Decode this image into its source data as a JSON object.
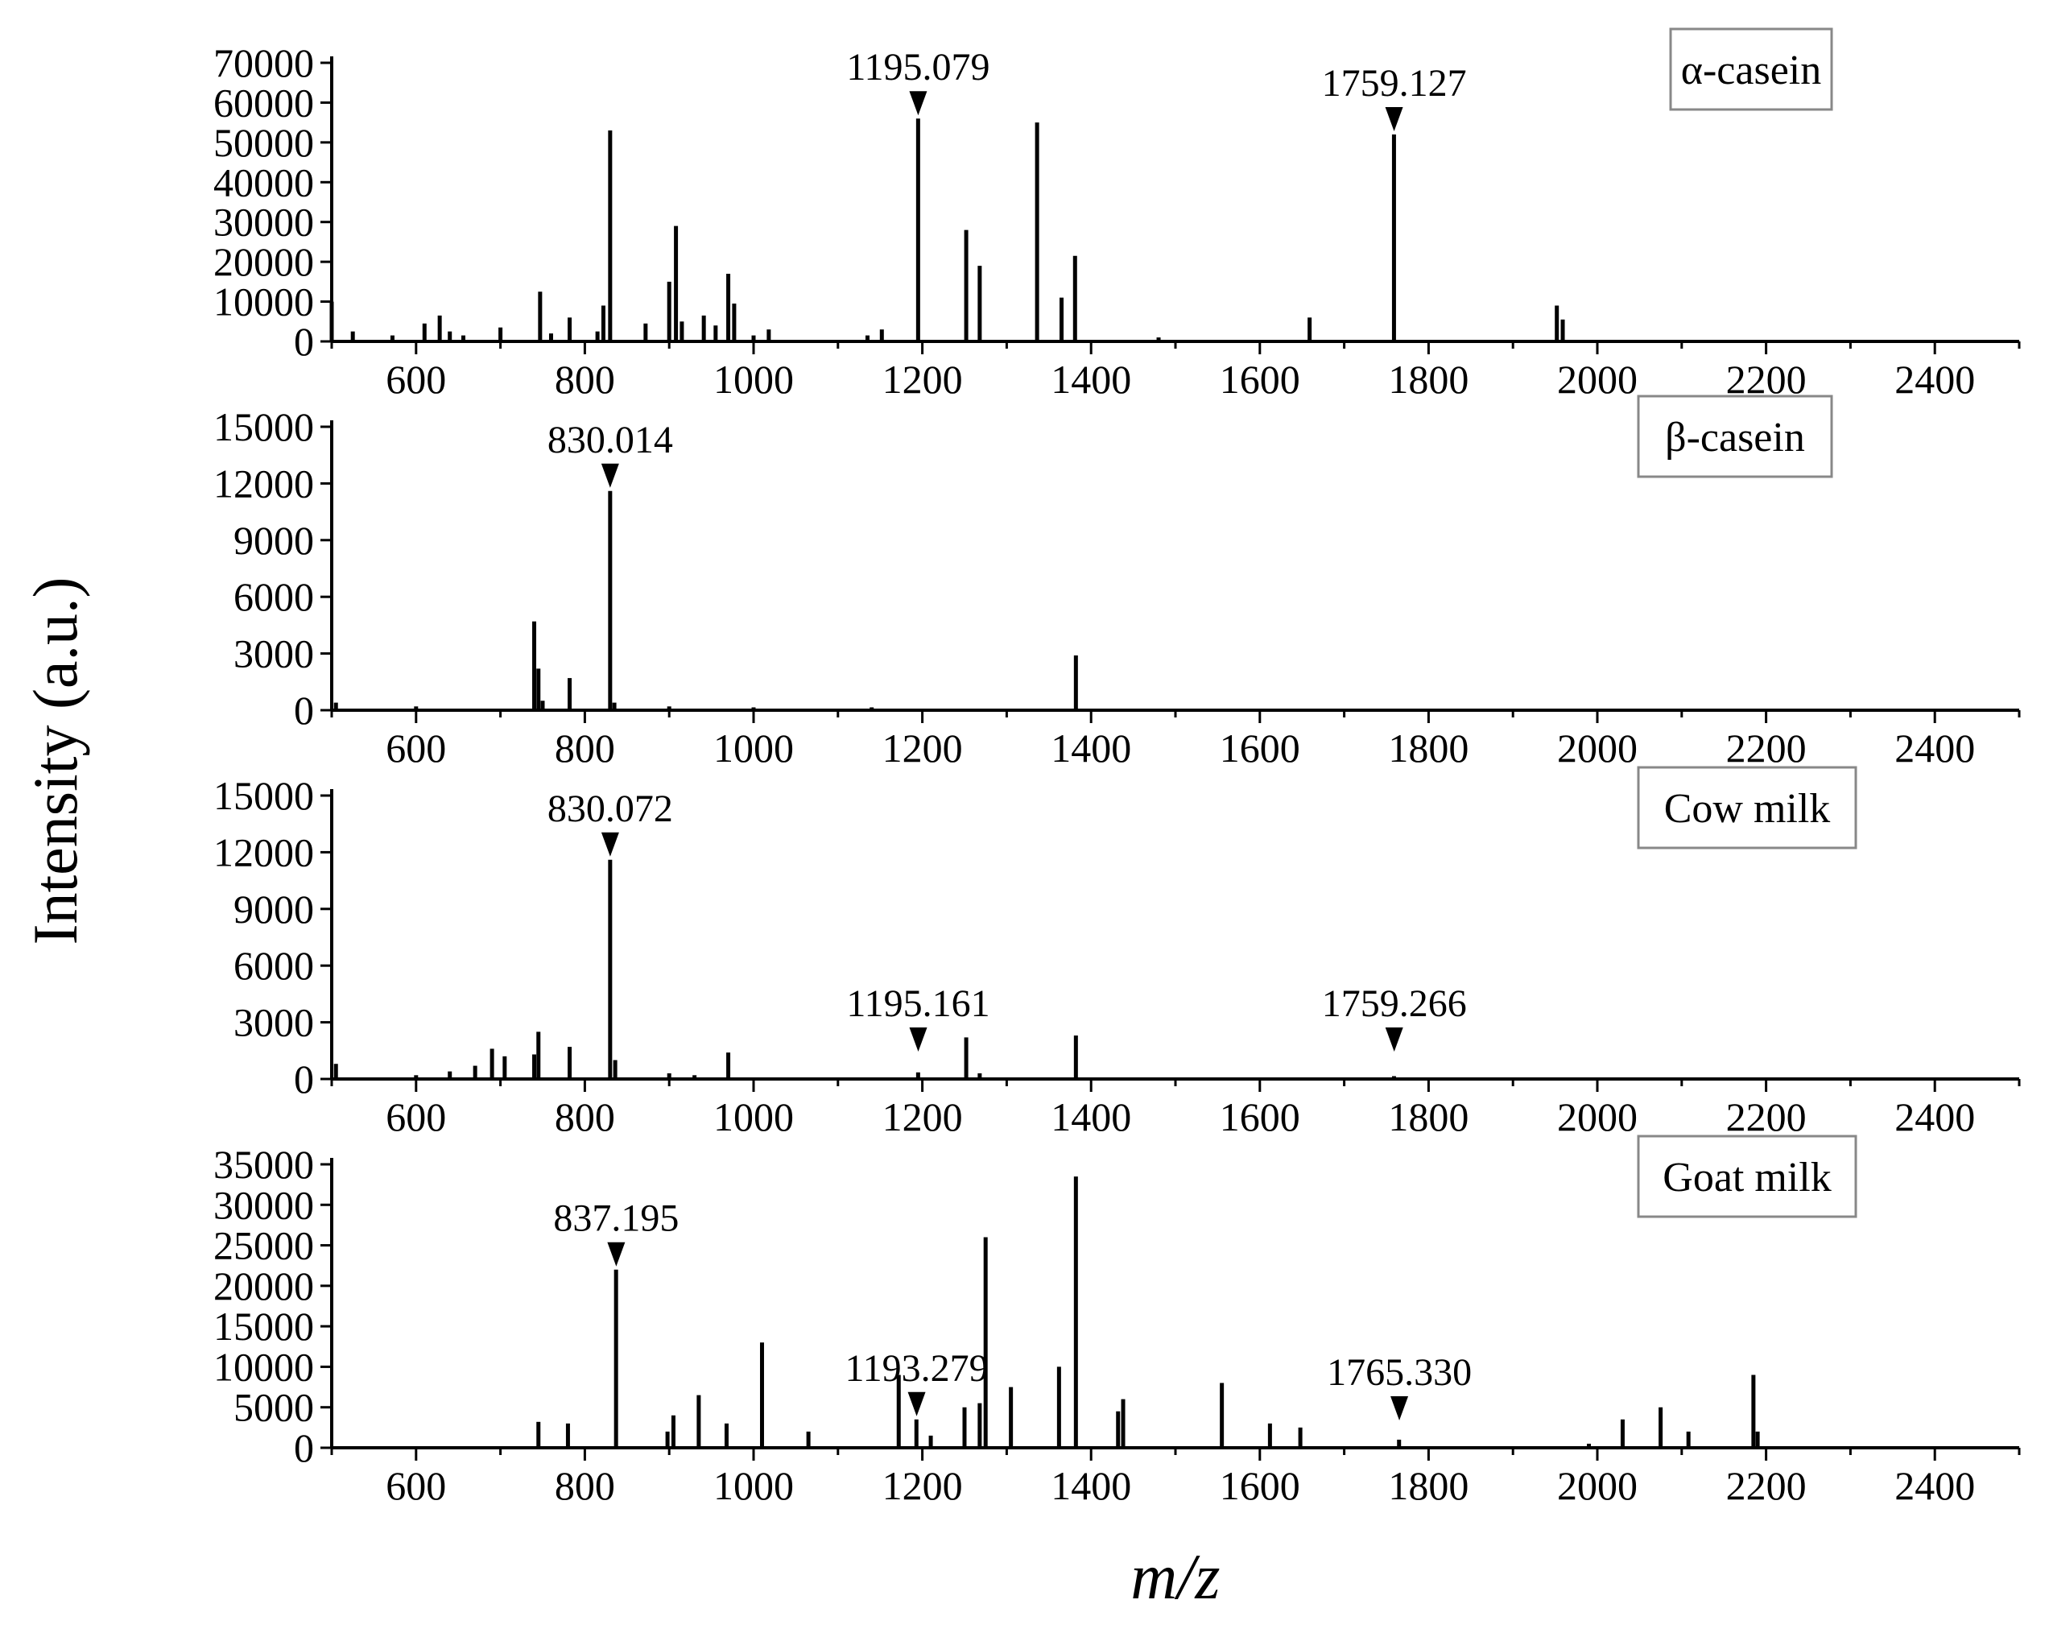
{
  "chart_data": {
    "type": "bar",
    "xlabel": "m/z",
    "ylabel": "Intensity (a.u.)",
    "xlim": [
      500,
      2500
    ],
    "xticks": [
      600,
      800,
      1000,
      1200,
      1400,
      1600,
      1800,
      2000,
      2200,
      2400
    ],
    "panels": [
      {
        "name": "α-casein",
        "ylim": [
          0,
          70000
        ],
        "yticks": [
          0,
          10000,
          20000,
          30000,
          40000,
          50000,
          60000,
          70000
        ],
        "annotations": [
          {
            "x": 1195.079,
            "label": "1195.079"
          },
          {
            "x": 1759.127,
            "label": "1759.127"
          }
        ],
        "peaks": [
          [
            500,
            10000
          ],
          [
            525,
            2500
          ],
          [
            572,
            1500
          ],
          [
            610,
            4500
          ],
          [
            628,
            6500
          ],
          [
            640,
            2500
          ],
          [
            656,
            1500
          ],
          [
            700,
            3500
          ],
          [
            747,
            12500
          ],
          [
            760,
            2000
          ],
          [
            782,
            6000
          ],
          [
            815,
            2500
          ],
          [
            822,
            9000
          ],
          [
            830,
            53000
          ],
          [
            872,
            4500
          ],
          [
            900,
            15000
          ],
          [
            908,
            29000
          ],
          [
            915,
            5000
          ],
          [
            941,
            6500
          ],
          [
            955,
            4000
          ],
          [
            970,
            17000
          ],
          [
            977,
            9500
          ],
          [
            1000,
            1500
          ],
          [
            1018,
            3000
          ],
          [
            1135,
            1500
          ],
          [
            1152,
            3000
          ],
          [
            1195,
            56000
          ],
          [
            1252,
            28000
          ],
          [
            1268,
            19000
          ],
          [
            1336,
            55000
          ],
          [
            1365,
            11000
          ],
          [
            1381,
            21500
          ],
          [
            1480,
            1000
          ],
          [
            1659,
            6000
          ],
          [
            1759,
            52000
          ],
          [
            1952,
            9000
          ],
          [
            1959,
            5500
          ]
        ]
      },
      {
        "name": "β-casein",
        "ylim": [
          0,
          15000
        ],
        "yticks": [
          0,
          3000,
          6000,
          9000,
          12000,
          15000
        ],
        "annotations": [
          {
            "x": 830.014,
            "label": "830.014"
          }
        ],
        "peaks": [
          [
            505,
            400
          ],
          [
            600,
            200
          ],
          [
            740,
            4700
          ],
          [
            745,
            2200
          ],
          [
            750,
            500
          ],
          [
            782,
            1700
          ],
          [
            830,
            11600
          ],
          [
            835,
            400
          ],
          [
            900,
            200
          ],
          [
            1000,
            150
          ],
          [
            1140,
            150
          ],
          [
            1382,
            2900
          ]
        ]
      },
      {
        "name": "Cow milk",
        "ylim": [
          0,
          15000
        ],
        "yticks": [
          0,
          3000,
          6000,
          9000,
          12000,
          15000
        ],
        "annotations": [
          {
            "x": 830.072,
            "label": "830.072"
          },
          {
            "x": 1195.161,
            "label": "1195.161"
          },
          {
            "x": 1759.266,
            "label": "1759.266"
          }
        ],
        "peaks": [
          [
            505,
            800
          ],
          [
            600,
            200
          ],
          [
            640,
            400
          ],
          [
            670,
            700
          ],
          [
            690,
            1600
          ],
          [
            705,
            1200
          ],
          [
            740,
            1300
          ],
          [
            745,
            2500
          ],
          [
            782,
            1700
          ],
          [
            830,
            11600
          ],
          [
            836,
            1000
          ],
          [
            900,
            300
          ],
          [
            930,
            200
          ],
          [
            970,
            1400
          ],
          [
            1195,
            350
          ],
          [
            1252,
            2200
          ],
          [
            1268,
            300
          ],
          [
            1382,
            2300
          ],
          [
            1759,
            150
          ]
        ]
      },
      {
        "name": "Goat milk",
        "ylim": [
          0,
          35000
        ],
        "yticks": [
          0,
          5000,
          10000,
          15000,
          20000,
          25000,
          30000,
          35000
        ],
        "annotations": [
          {
            "x": 837.195,
            "label": "837.195"
          },
          {
            "x": 1193.279,
            "label": "1193.279"
          },
          {
            "x": 1765.33,
            "label": "1765.330"
          }
        ],
        "peaks": [
          [
            745,
            3200
          ],
          [
            780,
            3000
          ],
          [
            837,
            22000
          ],
          [
            898,
            2000
          ],
          [
            905,
            4000
          ],
          [
            935,
            6500
          ],
          [
            968,
            3000
          ],
          [
            1010,
            13000
          ],
          [
            1065,
            2000
          ],
          [
            1172,
            9000
          ],
          [
            1193,
            3500
          ],
          [
            1210,
            1500
          ],
          [
            1250,
            5000
          ],
          [
            1268,
            5500
          ],
          [
            1275,
            26000
          ],
          [
            1305,
            7500
          ],
          [
            1362,
            10000
          ],
          [
            1382,
            33500
          ],
          [
            1432,
            4500
          ],
          [
            1438,
            6000
          ],
          [
            1555,
            8000
          ],
          [
            1612,
            3000
          ],
          [
            1648,
            2500
          ],
          [
            1765,
            1000
          ],
          [
            1990,
            500
          ],
          [
            2030,
            3500
          ],
          [
            2075,
            5000
          ],
          [
            2108,
            2000
          ],
          [
            2185,
            9000
          ],
          [
            2190,
            2000
          ]
        ]
      }
    ]
  }
}
